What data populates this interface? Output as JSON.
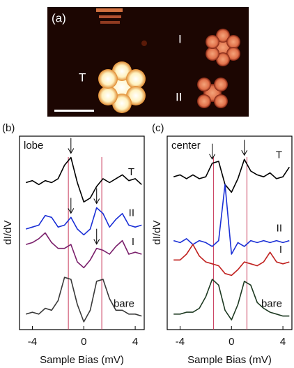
{
  "image": {
    "panel_label": "(a)",
    "labels": [
      "T",
      "I",
      "II"
    ]
  },
  "chart_data": [
    {
      "type": "line",
      "panel_label": "(b)",
      "corner_label": "lobe",
      "xlabel": "Sample Bias (mV)",
      "ylabel": "dI/dV",
      "xlim": [
        -5,
        4.7
      ],
      "xticks": [
        -4,
        0,
        4
      ],
      "ylim": [
        0,
        10
      ],
      "vlines": [
        -1.2,
        1.4
      ],
      "vline_color": "#c8385a",
      "x": [
        -4.5,
        -4,
        -3.5,
        -3,
        -2.5,
        -2,
        -1.5,
        -1,
        -0.5,
        0,
        0.5,
        1,
        1.5,
        2,
        2.5,
        3,
        3.5,
        4,
        4.5
      ],
      "series": [
        {
          "name": "T",
          "color": "#000000",
          "arrows": [
            -1
          ],
          "values": [
            7.6,
            7.7,
            7.5,
            7.7,
            7.6,
            7.8,
            8.5,
            8.9,
            7.6,
            6.6,
            6.8,
            7.4,
            7.8,
            7.6,
            7.8,
            8.0,
            7.7,
            7.8,
            7.5
          ]
        },
        {
          "name": "II",
          "color": "#1a2fd6",
          "arrows": [
            -1,
            1
          ],
          "values": [
            5.2,
            5.3,
            5.4,
            5.9,
            5.8,
            5.3,
            5.4,
            5.8,
            5.2,
            4.9,
            5.2,
            6.3,
            6.0,
            5.3,
            5.7,
            6.0,
            5.4,
            5.3,
            5.4
          ]
        },
        {
          "name": "I",
          "color": "#7a1f6b",
          "arrows": [
            1
          ],
          "values": [
            4.4,
            4.5,
            4.7,
            5.0,
            4.5,
            4.2,
            4.2,
            4.4,
            3.5,
            3.2,
            3.6,
            4.2,
            4.1,
            3.9,
            4.3,
            4.6,
            3.9,
            4.0,
            3.9
          ]
        },
        {
          "name": "bare",
          "color": "#3a3a3a",
          "arrows": [],
          "values": [
            0.8,
            0.9,
            0.8,
            1.1,
            1.0,
            1.5,
            2.7,
            2.6,
            1.3,
            0.4,
            1.0,
            2.5,
            2.6,
            1.6,
            1.0,
            1.0,
            0.8,
            0.8,
            0.7
          ]
        }
      ]
    },
    {
      "type": "line",
      "panel_label": "(c)",
      "corner_label": "center",
      "xlabel": "Sample Bias (mV)",
      "ylabel": "dI/dV",
      "xlim": [
        -5,
        4.7
      ],
      "xticks": [
        -4,
        0,
        4
      ],
      "ylim": [
        0,
        10
      ],
      "vlines": [
        -1.4,
        1.2
      ],
      "vline_color": "#c8385a",
      "x": [
        -4.5,
        -4,
        -3.5,
        -3,
        -2.5,
        -2,
        -1.5,
        -1,
        -0.5,
        0,
        0.5,
        1,
        1.5,
        2,
        2.5,
        3,
        3.5,
        4,
        4.5
      ],
      "series": [
        {
          "name": "T",
          "color": "#000000",
          "arrows": [
            -1.5,
            1
          ],
          "values": [
            7.9,
            8.0,
            7.8,
            8.0,
            7.8,
            7.9,
            8.6,
            8.7,
            7.5,
            7.1,
            7.8,
            8.8,
            8.2,
            8.0,
            7.9,
            8.1,
            7.8,
            7.9,
            8.4
          ]
        },
        {
          "name": "II",
          "color": "#1a2fd6",
          "arrows": [],
          "values": [
            4.6,
            4.5,
            4.7,
            4.4,
            4.6,
            4.5,
            4.3,
            4.6,
            7.5,
            3.9,
            4.5,
            4.3,
            4.6,
            4.5,
            4.6,
            4.5,
            4.6,
            4.5,
            4.6
          ]
        },
        {
          "name": "I",
          "color": "#c0201e",
          "arrows": [],
          "values": [
            3.6,
            3.6,
            3.9,
            4.4,
            3.8,
            3.5,
            3.4,
            3.3,
            2.9,
            2.8,
            3.1,
            3.5,
            3.4,
            3.3,
            3.5,
            4.0,
            3.5,
            3.4,
            3.5
          ]
        },
        {
          "name": "bare",
          "color": "#1e3a22",
          "arrows": [],
          "values": [
            0.8,
            0.8,
            0.9,
            0.9,
            1.1,
            1.7,
            2.6,
            2.3,
            1.0,
            0.5,
            1.3,
            2.5,
            2.3,
            1.4,
            1.1,
            0.9,
            0.8,
            0.7,
            0.7
          ]
        }
      ]
    }
  ]
}
